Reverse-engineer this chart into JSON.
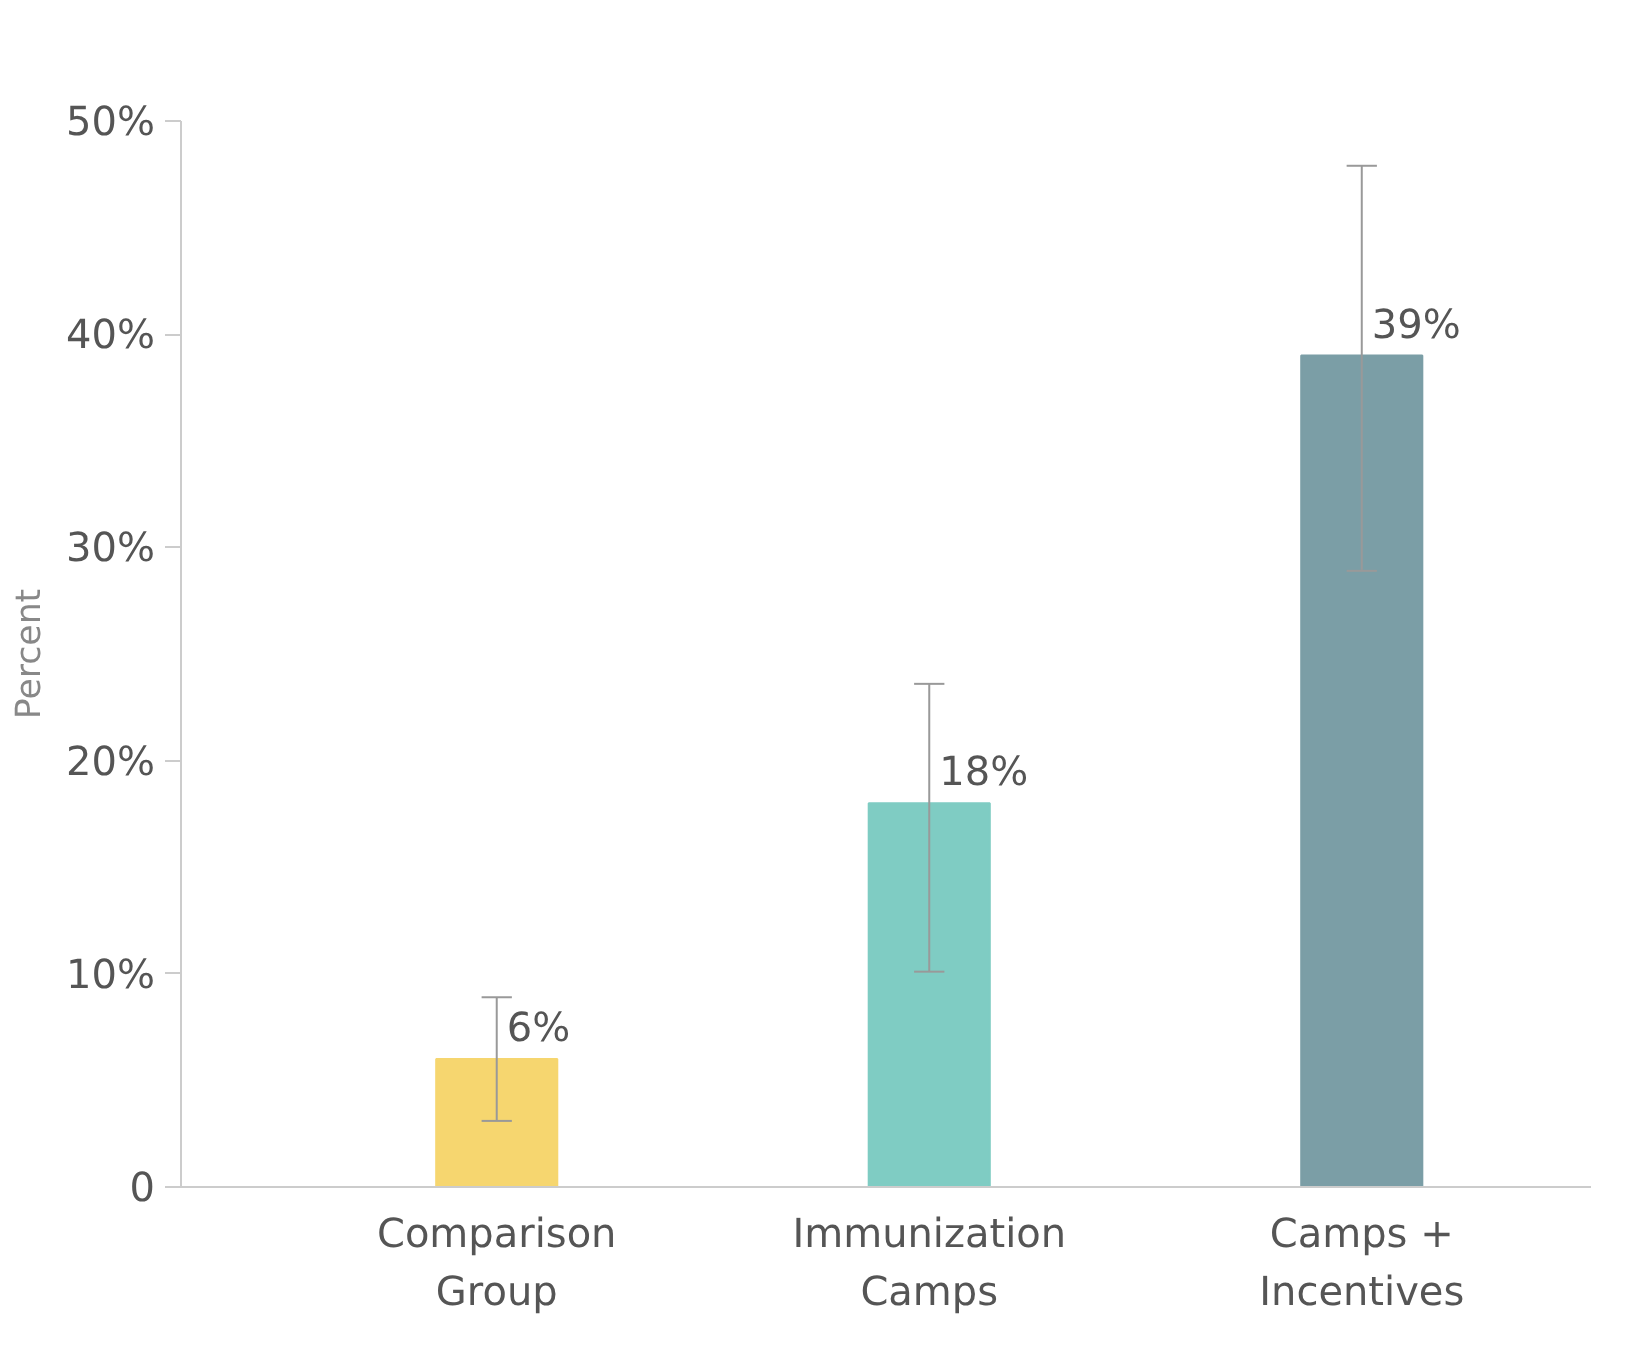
{
  "chart_data": {
    "type": "bar",
    "ylabel": "Percent",
    "categories": [
      "Comparison\nGroup",
      "Immunization\nCamps",
      "Camps +\nIncentives"
    ],
    "values": [
      6,
      18,
      39
    ],
    "colors": [
      "#f6d66f",
      "#7fccc3",
      "#7b9ea6"
    ],
    "errors": [
      [
        3.1,
        8.9
      ],
      [
        10.1,
        23.6
      ],
      [
        28.9,
        47.9
      ]
    ],
    "value_labels": [
      "6%",
      "18%",
      "39%"
    ],
    "ylim": [
      0,
      50
    ],
    "yticks": [
      {
        "value": 0,
        "label": "0"
      },
      {
        "value": 10,
        "label": "10%"
      },
      {
        "value": 20,
        "label": "20%"
      },
      {
        "value": 30,
        "label": "30%"
      },
      {
        "value": 40,
        "label": "40%"
      },
      {
        "value": 50,
        "label": "50%"
      }
    ],
    "grid": false
  }
}
